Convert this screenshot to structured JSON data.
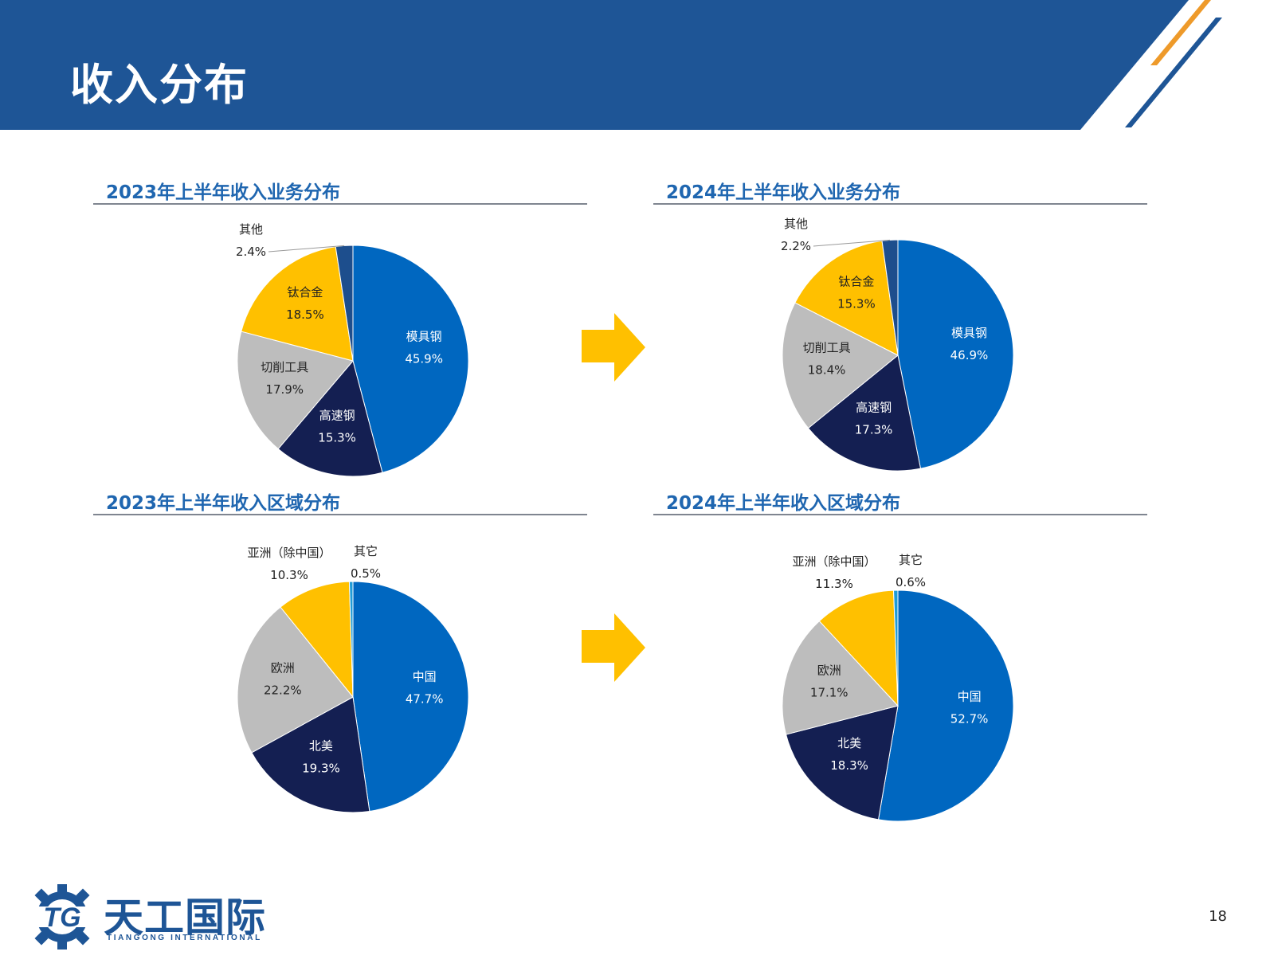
{
  "header": {
    "title": "收入分布"
  },
  "colors": {
    "header_blue": "#1e5596",
    "accent_orange": "#ee9a2a",
    "title_blue": "#1f66b0",
    "arrow_yellow": "#ffc000",
    "rule_gray": "#7f8590"
  },
  "chart_data": [
    {
      "type": "pie",
      "title": "2023年上半年收入业务分布",
      "slices": [
        {
          "label": "模具钢",
          "value": 45.9,
          "display": "45.9%",
          "color": "#0067c0"
        },
        {
          "label": "高速钢",
          "value": 15.3,
          "display": "15.3%",
          "color": "#141f52"
        },
        {
          "label": "切削工具",
          "value": 17.9,
          "display": "17.9%",
          "color": "#bdbdbd"
        },
        {
          "label": "钛合金",
          "value": 18.5,
          "display": "18.5%",
          "color": "#ffc000"
        },
        {
          "label": "其他",
          "value": 2.4,
          "display": "2.4%",
          "color": "#1d4e8d"
        }
      ]
    },
    {
      "type": "pie",
      "title": "2024年上半年收入业务分布",
      "slices": [
        {
          "label": "模具钢",
          "value": 46.9,
          "display": "46.9%",
          "color": "#0067c0"
        },
        {
          "label": "高速钢",
          "value": 17.3,
          "display": "17.3%",
          "color": "#141f52"
        },
        {
          "label": "切削工具",
          "value": 18.4,
          "display": "18.4%",
          "color": "#bdbdbd"
        },
        {
          "label": "钛合金",
          "value": 15.3,
          "display": "15.3%",
          "color": "#ffc000"
        },
        {
          "label": "其他",
          "value": 2.2,
          "display": "2.2%",
          "color": "#1d4e8d"
        }
      ]
    },
    {
      "type": "pie",
      "title": "2023年上半年收入区域分布",
      "slices": [
        {
          "label": "中国",
          "value": 47.7,
          "display": "47.7%",
          "color": "#0067c0"
        },
        {
          "label": "北美",
          "value": 19.3,
          "display": "19.3%",
          "color": "#141f52"
        },
        {
          "label": "欧洲",
          "value": 22.2,
          "display": "22.2%",
          "color": "#bdbdbd"
        },
        {
          "label": "亚洲（除中国）",
          "value": 10.3,
          "display": "10.3%",
          "color": "#ffc000"
        },
        {
          "label": "其它",
          "value": 0.5,
          "display": "0.5%",
          "color": "#1f9bd7"
        }
      ]
    },
    {
      "type": "pie",
      "title": "2024年上半年收入区域分布",
      "slices": [
        {
          "label": "中国",
          "value": 52.7,
          "display": "52.7%",
          "color": "#0067c0"
        },
        {
          "label": "北美",
          "value": 18.3,
          "display": "18.3%",
          "color": "#141f52"
        },
        {
          "label": "欧洲",
          "value": 17.1,
          "display": "17.1%",
          "color": "#bdbdbd"
        },
        {
          "label": "亚洲（除中国）",
          "value": 11.3,
          "display": "11.3%",
          "color": "#ffc000"
        },
        {
          "label": "其它",
          "value": 0.6,
          "display": "0.6%",
          "color": "#1f9bd7"
        }
      ]
    }
  ],
  "logo": {
    "mark": "TG",
    "name": "天工国际",
    "subtitle": "TIANGONG INTERNATIONAL"
  },
  "page_number": "18"
}
